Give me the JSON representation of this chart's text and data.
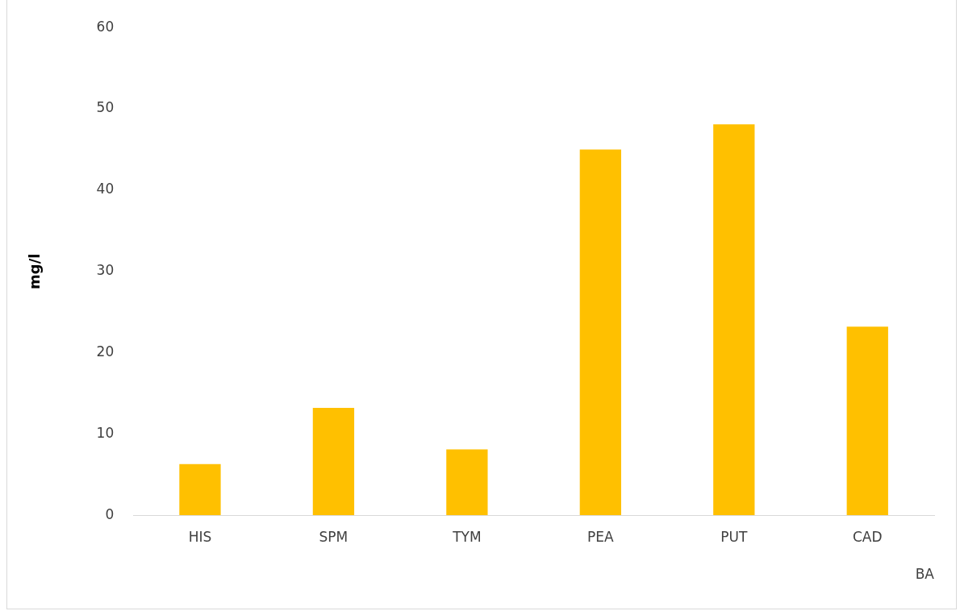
{
  "chart_data": {
    "type": "bar",
    "categories": [
      "HIS",
      "SPM",
      "TYM",
      "PEA",
      "PUT",
      "CAD"
    ],
    "values": [
      6.3,
      13.2,
      8.1,
      45.0,
      48.1,
      23.2
    ],
    "color": "#ffc000",
    "ylim": [
      0,
      60
    ],
    "yticks": [
      0,
      10,
      20,
      30,
      40,
      50,
      60
    ],
    "ylabel": "mg/l",
    "xlabel": "BA",
    "grid": false,
    "legend": false
  }
}
